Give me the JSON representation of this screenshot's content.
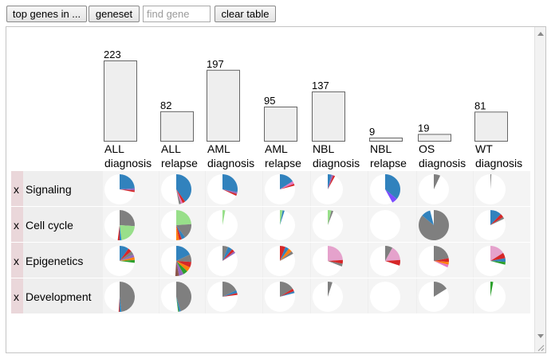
{
  "toolbar": {
    "top_genes_label": "top genes in ...",
    "geneset_label": "geneset",
    "find_gene_placeholder": "find gene",
    "clear_table_label": "clear table"
  },
  "colors": {
    "bar_fill": "#eeeeee",
    "bar_stroke": "#666666",
    "row_band": "#eeeeee",
    "delete_cell": "#ead7da"
  },
  "row_delete_label": "x",
  "chart_data": {
    "type": "bar",
    "categories": [
      {
        "line1": "ALL",
        "line2": "diagnosis"
      },
      {
        "line1": "ALL",
        "line2": "relapse"
      },
      {
        "line1": "AML",
        "line2": "diagnosis"
      },
      {
        "line1": "AML",
        "line2": "relapse"
      },
      {
        "line1": "NBL",
        "line2": "diagnosis"
      },
      {
        "line1": "NBL",
        "line2": "relapse"
      },
      {
        "line1": "OS",
        "line2": "diagnosis"
      },
      {
        "line1": "WT",
        "line2": "diagnosis"
      }
    ],
    "values": [
      223,
      82,
      197,
      95,
      137,
      9,
      19,
      81
    ],
    "ylim": [
      0,
      223
    ]
  },
  "genesets": [
    {
      "name": "Signaling",
      "pies": [
        [
          {
            "v": 0.24,
            "c": "#3182bd"
          },
          {
            "v": 0.02,
            "c": "#9467bd"
          },
          {
            "v": 0.02,
            "c": "#d62728"
          }
        ],
        [
          {
            "v": 0.4,
            "c": "#3182bd"
          },
          {
            "v": 0.03,
            "c": "#d62728"
          },
          {
            "v": 0.02,
            "c": "#e377c2"
          },
          {
            "v": 0.02,
            "c": "#7f7f7f"
          }
        ],
        [
          {
            "v": 0.28,
            "c": "#3182bd"
          },
          {
            "v": 0.02,
            "c": "#9467bd"
          },
          {
            "v": 0.02,
            "c": "#d62728"
          }
        ],
        [
          {
            "v": 0.16,
            "c": "#3182bd"
          },
          {
            "v": 0.03,
            "c": "#e377c2"
          },
          {
            "v": 0.02,
            "c": "#d62728"
          }
        ],
        [
          {
            "v": 0.04,
            "c": "#3182bd"
          },
          {
            "v": 0.02,
            "c": "#9467bd"
          },
          {
            "v": 0.02,
            "c": "#d62728"
          }
        ],
        [
          {
            "v": 0.36,
            "c": "#3182bd"
          },
          {
            "v": 0.06,
            "c": "#7c4dff"
          }
        ],
        [
          {
            "v": 0.07,
            "c": "#7f7f7f"
          }
        ],
        [
          {
            "v": 0.01,
            "c": "#7f7f7f"
          }
        ]
      ]
    },
    {
      "name": "Cell cycle",
      "pies": [
        [
          {
            "v": 0.26,
            "c": "#7f7f7f"
          },
          {
            "v": 0.22,
            "c": "#98df8a"
          },
          {
            "v": 0.02,
            "c": "#3182bd"
          },
          {
            "v": 0.02,
            "c": "#d62728"
          }
        ],
        [
          {
            "v": 0.24,
            "c": "#98df8a"
          },
          {
            "v": 0.16,
            "c": "#7f7f7f"
          },
          {
            "v": 0.04,
            "c": "#3182bd"
          },
          {
            "v": 0.03,
            "c": "#d62728"
          },
          {
            "v": 0.03,
            "c": "#ff7f0e"
          }
        ],
        [
          {
            "v": 0.03,
            "c": "#98df8a"
          }
        ],
        [
          {
            "v": 0.03,
            "c": "#98df8a"
          },
          {
            "v": 0.02,
            "c": "#3182bd"
          }
        ],
        [
          {
            "v": 0.04,
            "c": "#98df8a"
          },
          {
            "v": 0.02,
            "c": "#7f7f7f"
          }
        ],
        [],
        [
          {
            "v": 0.86,
            "c": "#7f7f7f"
          },
          {
            "v": 0.1,
            "c": "#3182bd"
          }
        ],
        [
          {
            "v": 0.12,
            "c": "#3182bd"
          },
          {
            "v": 0.04,
            "c": "#d62728"
          },
          {
            "v": 0.02,
            "c": "#7f7f7f"
          }
        ]
      ]
    },
    {
      "name": "Epigenetics",
      "pies": [
        [
          {
            "v": 0.1,
            "c": "#3182bd"
          },
          {
            "v": 0.04,
            "c": "#d62728"
          },
          {
            "v": 0.04,
            "c": "#7f7f7f"
          },
          {
            "v": 0.03,
            "c": "#9467bd"
          },
          {
            "v": 0.03,
            "c": "#ff7f0e"
          },
          {
            "v": 0.03,
            "c": "#2ca02c"
          }
        ],
        [
          {
            "v": 0.18,
            "c": "#3182bd"
          },
          {
            "v": 0.08,
            "c": "#7f7f7f"
          },
          {
            "v": 0.06,
            "c": "#d62728"
          },
          {
            "v": 0.05,
            "c": "#ff7f0e"
          },
          {
            "v": 0.05,
            "c": "#2ca02c"
          },
          {
            "v": 0.05,
            "c": "#9467bd"
          },
          {
            "v": 0.04,
            "c": "#8c564b"
          }
        ],
        [
          {
            "v": 0.06,
            "c": "#7f7f7f"
          },
          {
            "v": 0.05,
            "c": "#3182bd"
          },
          {
            "v": 0.03,
            "c": "#d62728"
          },
          {
            "v": 0.02,
            "c": "#9467bd"
          }
        ],
        [
          {
            "v": 0.06,
            "c": "#d62728"
          },
          {
            "v": 0.04,
            "c": "#3182bd"
          },
          {
            "v": 0.04,
            "c": "#ff7f0e"
          },
          {
            "v": 0.03,
            "c": "#7f7f7f"
          }
        ],
        [
          {
            "v": 0.24,
            "c": "#e5a2cc"
          },
          {
            "v": 0.04,
            "c": "#d62728"
          },
          {
            "v": 0.03,
            "c": "#7f7f7f"
          }
        ],
        [
          {
            "v": 0.08,
            "c": "#7f7f7f"
          },
          {
            "v": 0.16,
            "c": "#e5a2cc"
          },
          {
            "v": 0.06,
            "c": "#d62728"
          }
        ],
        [
          {
            "v": 0.22,
            "c": "#7f7f7f"
          },
          {
            "v": 0.04,
            "c": "#d62728"
          },
          {
            "v": 0.03,
            "c": "#ff7f0e"
          },
          {
            "v": 0.03,
            "c": "#e377c2"
          }
        ],
        [
          {
            "v": 0.16,
            "c": "#e5a2cc"
          },
          {
            "v": 0.06,
            "c": "#d62728"
          },
          {
            "v": 0.04,
            "c": "#3182bd"
          },
          {
            "v": 0.03,
            "c": "#2ca02c"
          }
        ]
      ]
    },
    {
      "name": "Development",
      "pies": [
        [
          {
            "v": 0.48,
            "c": "#7f7f7f"
          },
          {
            "v": 0.02,
            "c": "#3182bd"
          },
          {
            "v": 0.01,
            "c": "#d62728"
          }
        ],
        [
          {
            "v": 0.45,
            "c": "#7f7f7f"
          },
          {
            "v": 0.02,
            "c": "#3182bd"
          },
          {
            "v": 0.01,
            "c": "#2ca02c"
          }
        ],
        [
          {
            "v": 0.18,
            "c": "#7f7f7f"
          },
          {
            "v": 0.03,
            "c": "#3182bd"
          },
          {
            "v": 0.02,
            "c": "#d62728"
          }
        ],
        [
          {
            "v": 0.16,
            "c": "#7f7f7f"
          },
          {
            "v": 0.03,
            "c": "#d62728"
          },
          {
            "v": 0.02,
            "c": "#3182bd"
          }
        ],
        [
          {
            "v": 0.05,
            "c": "#7f7f7f"
          }
        ],
        [],
        [
          {
            "v": 0.16,
            "c": "#7f7f7f"
          }
        ],
        [
          {
            "v": 0.03,
            "c": "#2ca02c"
          }
        ]
      ]
    }
  ]
}
